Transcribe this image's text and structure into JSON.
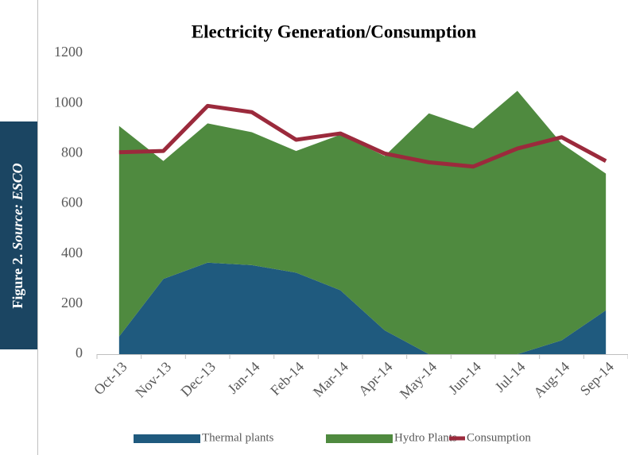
{
  "figure": {
    "label": "Figure 2.",
    "source": "Source: ESCO"
  },
  "chart_data": {
    "type": "stacked-area-line",
    "title": "Electricity Generation/Consumption",
    "categories": [
      "Oct-13",
      "Nov-13",
      "Dec-13",
      "Jan-14",
      "Feb-14",
      "Mar-14",
      "Apr-14",
      "May-14",
      "Jun-14",
      "Jul-14",
      "Aug-14",
      "Sep-14"
    ],
    "series": [
      {
        "name": "Thermal plants",
        "color": "#1f5a7e",
        "kind": "area",
        "values": [
          70,
          300,
          365,
          355,
          325,
          255,
          95,
          0,
          0,
          0,
          55,
          175
        ]
      },
      {
        "name": "Hydro Plants",
        "color": "#4f8a3f",
        "kind": "area",
        "values": [
          840,
          470,
          555,
          530,
          485,
          620,
          695,
          960,
          900,
          1050,
          785,
          545
        ]
      },
      {
        "name": "Consumption",
        "color": "#9b2a3c",
        "kind": "line",
        "values": [
          805,
          810,
          990,
          965,
          855,
          880,
          800,
          765,
          748,
          820,
          865,
          770
        ]
      }
    ],
    "ylim": [
      0,
      1200
    ],
    "yticks": [
      0,
      200,
      400,
      600,
      800,
      1000,
      1200
    ],
    "grid": false,
    "legend": "bottom"
  }
}
